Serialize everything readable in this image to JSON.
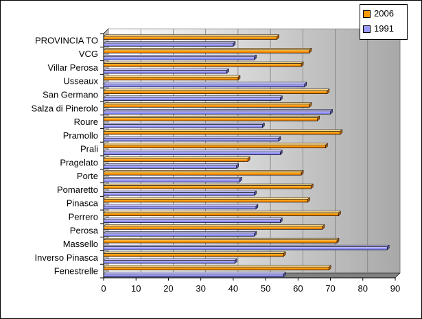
{
  "chart_data": {
    "type": "bar",
    "orientation": "horizontal",
    "categories": [
      "PROVINCIA TO",
      "VCG",
      "Villar Perosa",
      "Usseaux",
      "San Germano",
      "Salza di Pinerolo",
      "Roure",
      "Pramollo",
      "Prali",
      "Pragelato",
      "Porte",
      "Pomaretto",
      "Pinasca",
      "Perrero",
      "Perosa",
      "Massello",
      "Inverso Pinasca",
      "Fenestrelle"
    ],
    "series": [
      {
        "name": "2006",
        "color": "#ff9900",
        "values": [
          53.5,
          63.5,
          61,
          41.5,
          69,
          63.5,
          66,
          73,
          68.5,
          44.5,
          61,
          64,
          63,
          72.5,
          67.5,
          72,
          55.5,
          69.5
        ]
      },
      {
        "name": "1991",
        "color": "#9999ff",
        "values": [
          40,
          46.5,
          38,
          62,
          54.5,
          70,
          49,
          54,
          54.5,
          41,
          42,
          46.5,
          47,
          54.5,
          46.5,
          87.5,
          40.5,
          55.5
        ]
      }
    ],
    "xticks": [
      "0",
      "10",
      "20",
      "30",
      "40",
      "50",
      "60",
      "70",
      "80",
      "90"
    ],
    "xlim": [
      0,
      90
    ],
    "grid": true,
    "legend_position": "top-right",
    "background": "gradient white to grey"
  }
}
